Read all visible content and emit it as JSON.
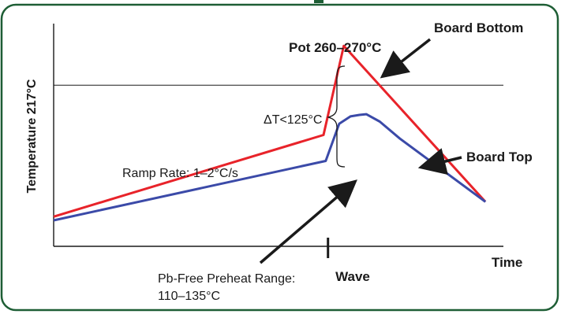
{
  "chart_data": {
    "type": "line",
    "title": "",
    "xlabel": "Time",
    "ylabel": "Temperature 217°C",
    "x_ticks": [
      {
        "label": "Wave",
        "x": 6.1
      }
    ],
    "reference_lines": [
      {
        "axis": "y",
        "y": 217
      }
    ],
    "series": [
      {
        "name": "Board Bottom",
        "color": "#e8232a",
        "points": [
          [
            0,
            40
          ],
          [
            6.0,
            150
          ],
          [
            6.45,
            270
          ],
          [
            9.6,
            60
          ]
        ]
      },
      {
        "name": "Board Top",
        "color": "#3b4aa8",
        "points": [
          [
            0,
            35
          ],
          [
            6.05,
            115
          ],
          [
            6.35,
            165
          ],
          [
            6.6,
            175
          ],
          [
            6.8,
            177
          ],
          [
            6.95,
            178
          ],
          [
            7.25,
            168
          ],
          [
            7.7,
            145
          ],
          [
            9.6,
            60
          ]
        ]
      }
    ],
    "annotations": [
      {
        "id": "pot",
        "text": "Pot 260–270°C"
      },
      {
        "id": "board_bottom",
        "text": "Board Bottom"
      },
      {
        "id": "board_top",
        "text": "Board Top"
      },
      {
        "id": "delta_t",
        "text": "ΔT<125°C"
      },
      {
        "id": "ramp_rate",
        "text": "Ramp Rate: 1–2°C/s"
      },
      {
        "id": "preheat_line1",
        "text": "Pb-Free Preheat Range:"
      },
      {
        "id": "preheat_line2",
        "text": "110–135°C"
      }
    ],
    "grid": false,
    "legend": "none"
  },
  "colors": {
    "frame_border": "#1e5e35",
    "axis": "#1a1a1a",
    "arrow": "#1a1a1a"
  }
}
